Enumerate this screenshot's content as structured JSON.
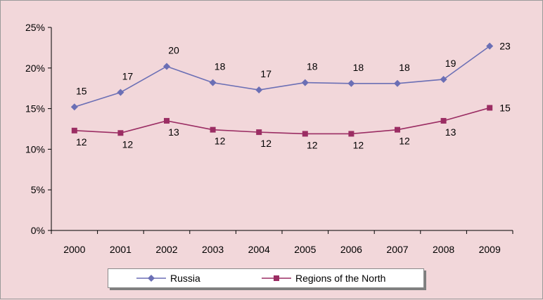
{
  "chart_data": {
    "type": "line",
    "categories": [
      "2000",
      "2001",
      "2002",
      "2003",
      "2004",
      "2005",
      "2006",
      "2007",
      "2008",
      "2009"
    ],
    "series": [
      {
        "name": "Russia",
        "values": [
          15.2,
          17.0,
          20.2,
          18.2,
          17.3,
          18.2,
          18.1,
          18.1,
          18.6,
          22.7
        ],
        "labels": [
          "15",
          "17",
          "20",
          "18",
          "17",
          "18",
          "18",
          "18",
          "19",
          "23"
        ],
        "color": "#6b6fb5",
        "marker": "diamond"
      },
      {
        "name": "Regions of the North",
        "values": [
          12.3,
          12.0,
          13.5,
          12.4,
          12.1,
          11.9,
          11.9,
          12.4,
          13.5,
          15.1
        ],
        "labels": [
          "12",
          "12",
          "13",
          "12",
          "12",
          "12",
          "12",
          "12",
          "13",
          "15"
        ],
        "color": "#9b2d63",
        "marker": "square"
      }
    ],
    "yticks": [
      "0%",
      "5%",
      "10%",
      "15%",
      "20%",
      "25%"
    ],
    "ylim": [
      0,
      25
    ],
    "ystep": 5,
    "grid": false,
    "legend_position": "bottom"
  }
}
